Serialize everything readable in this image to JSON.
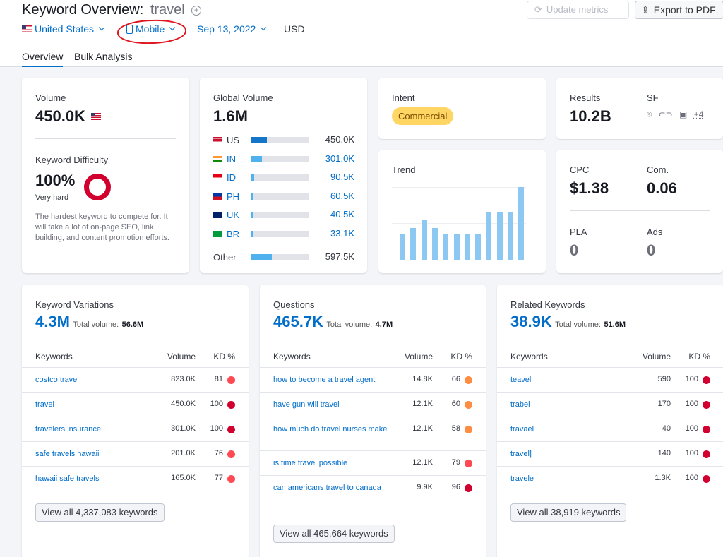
{
  "header": {
    "title": "Keyword Overview:",
    "keyword": "travel",
    "update_label": "Update metrics",
    "export_label": "Export to PDF",
    "country": "United States",
    "device": "Mobile",
    "date": "Sep 13, 2022",
    "currency": "USD",
    "tabs": [
      "Overview",
      "Bulk Analysis"
    ]
  },
  "volume": {
    "label": "Volume",
    "value": "450.0K"
  },
  "difficulty": {
    "label": "Keyword Difficulty",
    "value": "100%",
    "level": "Very hard",
    "description": "The hardest keyword to compete for. It will take a lot of on-page SEO, link building, and content promotion efforts.",
    "color": "#d1002f"
  },
  "global_volume": {
    "label": "Global Volume",
    "value": "1.6M",
    "rows": [
      {
        "code": "US",
        "value": "450.0K",
        "fill": 0.28
      },
      {
        "code": "IN",
        "value": "301.0K",
        "fill": 0.19
      },
      {
        "code": "ID",
        "value": "90.5K",
        "fill": 0.06
      },
      {
        "code": "PH",
        "value": "60.5K",
        "fill": 0.04
      },
      {
        "code": "UK",
        "value": "40.5K",
        "fill": 0.03
      },
      {
        "code": "BR",
        "value": "33.1K",
        "fill": 0.02
      }
    ],
    "other": {
      "label": "Other",
      "value": "597.5K",
      "fill": 0.37
    }
  },
  "intent": {
    "label": "Intent",
    "badge": "Commercial"
  },
  "results": {
    "label": "Results",
    "value": "10.2B",
    "sf_label": "SF",
    "sf_more": "+4"
  },
  "trend": {
    "label": "Trend",
    "values": [
      0.36,
      0.44,
      0.54,
      0.44,
      0.36,
      0.36,
      0.36,
      0.36,
      0.66,
      0.66,
      0.66,
      1.0
    ]
  },
  "cpc": {
    "label": "CPC",
    "value": "$1.38",
    "com_label": "Com.",
    "com_value": "0.06",
    "pla_label": "PLA",
    "pla_value": "0",
    "ads_label": "Ads",
    "ads_value": "0"
  },
  "variations": {
    "title": "Keyword Variations",
    "count": "4.3M",
    "total_label": "Total volume:",
    "total": "56.6M",
    "col_keywords": "Keywords",
    "col_volume": "Volume",
    "col_kd": "KD %",
    "rows": [
      {
        "kw": "costco travel",
        "vol": "823.0K",
        "kd": "81",
        "color": "#ff4953"
      },
      {
        "kw": "travel",
        "vol": "450.0K",
        "kd": "100",
        "color": "#d1002f"
      },
      {
        "kw": "travelers insurance",
        "vol": "301.0K",
        "kd": "100",
        "color": "#d1002f"
      },
      {
        "kw": "safe travels hawaii",
        "vol": "201.0K",
        "kd": "76",
        "color": "#ff4953"
      },
      {
        "kw": "hawaii safe travels",
        "vol": "165.0K",
        "kd": "77",
        "color": "#ff4953"
      }
    ],
    "view_all": "View all 4,337,083 keywords"
  },
  "questions": {
    "title": "Questions",
    "count": "465.7K",
    "total_label": "Total volume:",
    "total": "4.7M",
    "col_keywords": "Keywords",
    "col_volume": "Volume",
    "col_kd": "KD %",
    "rows": [
      {
        "kw": "how to become a travel agent",
        "vol": "14.8K",
        "kd": "66",
        "color": "#ff8c43"
      },
      {
        "kw": "have gun will travel",
        "vol": "12.1K",
        "kd": "60",
        "color": "#ff8c43"
      },
      {
        "kw": "how much do travel nurses make",
        "vol": "12.1K",
        "kd": "58",
        "color": "#ff8c43"
      },
      {
        "kw": "is time travel possible",
        "vol": "12.1K",
        "kd": "79",
        "color": "#ff4953"
      },
      {
        "kw": "can americans travel to canada",
        "vol": "9.9K",
        "kd": "96",
        "color": "#d1002f"
      }
    ],
    "view_all": "View all 465,664 keywords"
  },
  "related": {
    "title": "Related Keywords",
    "count": "38.9K",
    "total_label": "Total volume:",
    "total": "51.6M",
    "col_keywords": "Keywords",
    "col_volume": "Volume",
    "col_kd": "KD %",
    "rows": [
      {
        "kw": "teavel",
        "vol": "590",
        "kd": "100",
        "color": "#d1002f"
      },
      {
        "kw": "trabel",
        "vol": "170",
        "kd": "100",
        "color": "#d1002f"
      },
      {
        "kw": "travael",
        "vol": "40",
        "kd": "100",
        "color": "#d1002f"
      },
      {
        "kw": "travel]",
        "vol": "140",
        "kd": "100",
        "color": "#d1002f"
      },
      {
        "kw": "travele",
        "vol": "1.3K",
        "kd": "100",
        "color": "#d1002f"
      }
    ],
    "view_all": "View all 38,919 keywords"
  }
}
